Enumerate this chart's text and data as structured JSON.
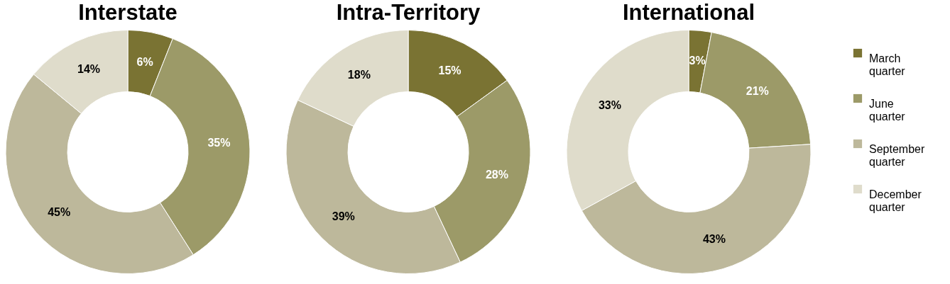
{
  "chart_data": [
    {
      "type": "donut",
      "title": "Interstate",
      "categories": [
        null,
        null,
        null,
        null
      ],
      "values": [
        6,
        35,
        45,
        14
      ],
      "value_labels": [
        "6%",
        "35%",
        "45%",
        "14%"
      ],
      "colors": [
        "#7a7333",
        "#9c9a68",
        "#bdb89b",
        "#dfdccb"
      ],
      "legend": false
    },
    {
      "type": "donut",
      "title": "Intra-Territory",
      "categories": [
        null,
        null,
        null,
        null
      ],
      "values": [
        15,
        28,
        39,
        18
      ],
      "value_labels": [
        "15%",
        "28%",
        "39%",
        "18%"
      ],
      "colors": [
        "#7a7333",
        "#9c9a68",
        "#bdb89b",
        "#dfdccb"
      ],
      "legend": false
    },
    {
      "type": "donut",
      "title": "International",
      "categories": [
        "March quarter",
        "June quarter",
        "September quarter",
        "December quarter"
      ],
      "values": [
        3,
        21,
        43,
        33
      ],
      "value_labels": [
        "3%",
        "21%",
        "43%",
        "33%"
      ],
      "colors": [
        "#7a7333",
        "#9c9a68",
        "#bdb89b",
        "#dfdccb"
      ],
      "legend": "right"
    }
  ]
}
